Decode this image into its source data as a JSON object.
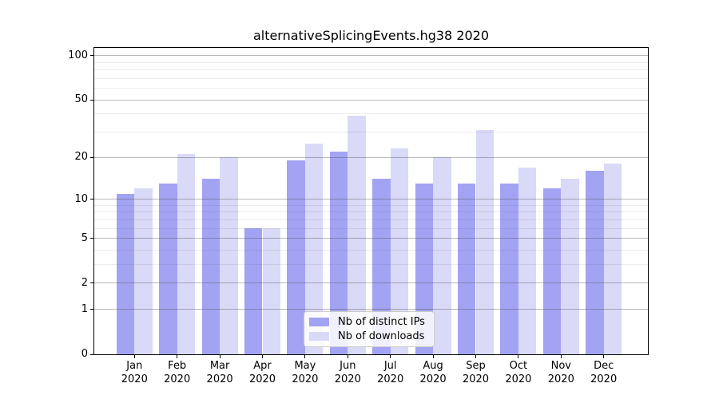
{
  "title": "alternativeSplicingEvents.hg38 2020",
  "chart_data": {
    "type": "bar",
    "title": "alternativeSplicingEvents.hg38 2020",
    "categories": [
      "Jan",
      "Feb",
      "Mar",
      "Apr",
      "May",
      "Jun",
      "Jul",
      "Aug",
      "Sep",
      "Oct",
      "Nov",
      "Dec"
    ],
    "category_year": "2020",
    "series": [
      {
        "name": "Nb of distinct IPs",
        "color": "#a3a3f3",
        "values": [
          11,
          13,
          14,
          6,
          19,
          22,
          14,
          13,
          13,
          13,
          12,
          16
        ]
      },
      {
        "name": "Nb of downloads",
        "color": "#d9d9f8",
        "values": [
          12,
          21,
          20,
          6,
          25,
          39,
          23,
          20,
          31,
          17,
          14,
          18
        ]
      }
    ],
    "yscale": "log1p",
    "ylim": [
      0,
      113
    ],
    "ytick_values": [
      0,
      1,
      2,
      5,
      10,
      20,
      50,
      100
    ],
    "ytick_labels": [
      "0",
      "1",
      "2",
      "5",
      "10",
      "20",
      "50",
      "100"
    ],
    "minor_grid_values": [
      3,
      4,
      6,
      7,
      8,
      9,
      30,
      40,
      60,
      70,
      80,
      90
    ],
    "grid": "both",
    "legend_position": "lower center",
    "xlabel": "",
    "ylabel": ""
  }
}
